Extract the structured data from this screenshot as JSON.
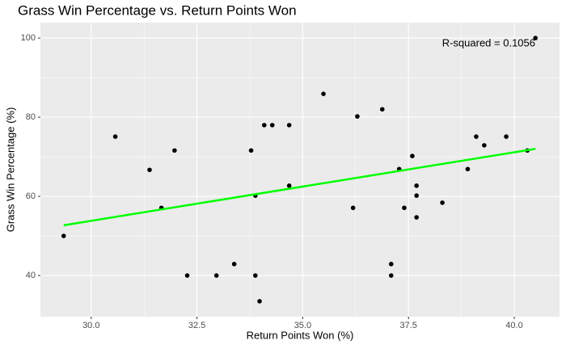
{
  "chart_data": {
    "type": "scatter",
    "title": "Grass Win Percentage vs. Return Points Won",
    "x_label": "Return Points Won (%)",
    "y_label": "Grass Win Percentage (%)",
    "annotation": "R-squared = 0.1056",
    "color": "#000000",
    "x": [
      29.35,
      30.57,
      31.38,
      31.66,
      31.97,
      32.27,
      32.96,
      33.38,
      33.78,
      33.88,
      33.88,
      33.98,
      34.09,
      34.28,
      34.68,
      34.68,
      35.49,
      36.19,
      36.29,
      36.88,
      37.09,
      37.09,
      37.28,
      37.4,
      37.59,
      37.69,
      37.69,
      37.69,
      38.3,
      38.9,
      39.1,
      39.29,
      39.81,
      40.31,
      40.5
    ],
    "values": [
      50.0,
      75.1,
      66.7,
      57.1,
      71.6,
      40,
      40,
      42.9,
      71.6,
      60.2,
      40,
      33.5,
      78,
      78,
      78,
      62.7,
      85.9,
      57.1,
      80.2,
      82,
      42.9,
      40,
      66.9,
      57.1,
      70.2,
      62.7,
      60.2,
      54.7,
      58.4,
      66.9,
      75.1,
      72.9,
      75.1,
      71.6,
      100
    ],
    "regression_line": {
      "x": [
        29.35,
        40.5
      ],
      "y": [
        52.7,
        72.0
      ],
      "color": "#00ff00"
    },
    "xlim": [
      28.8,
      41.07
    ],
    "ylim": [
      29.6,
      103.9
    ],
    "xticks": [
      {
        "value": 30,
        "label": "30.0"
      },
      32.5,
      {
        "value": 35,
        "label": "35.0"
      },
      37.5,
      {
        "value": 40,
        "label": "40.0"
      }
    ],
    "yticks": [
      40,
      60,
      80,
      100
    ],
    "grid": true
  }
}
